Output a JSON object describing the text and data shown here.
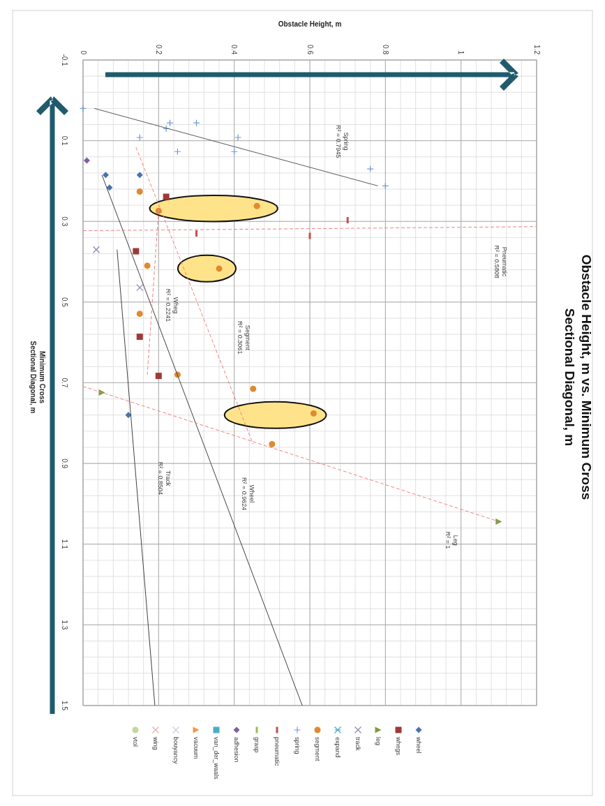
{
  "chart_data": {
    "type": "scatter",
    "title": "Obstacle Height, m vs. Minimum Cross\nSectional Diagonal, m",
    "xlabel": "Obstacle Height, m",
    "ylabel": "Minimum Cross\nSectional Diagonal, m",
    "xlim": [
      0,
      1.2
    ],
    "xticks": [
      0,
      0.2,
      0.4,
      0.6,
      0.8,
      1,
      1.2
    ],
    "ylim": [
      1.5,
      -0.1
    ],
    "yticks": [
      -0.1,
      0.1,
      0.3,
      0.5,
      0.7,
      0.9,
      1.1,
      1.3,
      1.5
    ],
    "grid": true,
    "legend": "bottom",
    "series": [
      {
        "name": "wheel",
        "color": "#4a72b0",
        "marker": "diamond",
        "values": [
          0.185,
          0.185,
          0.216,
          0.78
        ],
        "x": [
          0.06,
          0.15,
          0.07,
          0.12
        ]
      },
      {
        "name": "whegs",
        "color": "#9e3a38",
        "marker": "square",
        "values": [
          0.239,
          0.374,
          0.586,
          0.683
        ],
        "x": [
          0.22,
          0.14,
          0.15,
          0.2
        ]
      },
      {
        "name": "leg",
        "color": "#7f9a3f",
        "marker": "triangle",
        "values": [
          0.724,
          1.044
        ],
        "x": [
          0.05,
          1.1
        ]
      },
      {
        "name": "track",
        "color": "#8e82b8",
        "marker": "x",
        "values": [
          0.37,
          0.464
        ],
        "x": [
          0.035,
          0.15
        ]
      },
      {
        "name": "expand",
        "color": "#4aaac6",
        "marker": "asterisk"
      },
      {
        "name": "segment",
        "color": "#e08a2e",
        "marker": "circle",
        "values": [
          0.226,
          0.262,
          0.274,
          0.41,
          0.417,
          0.529,
          0.68,
          0.715,
          0.776,
          0.852
        ],
        "x": [
          0.15,
          0.46,
          0.2,
          0.17,
          0.36,
          0.15,
          0.25,
          0.45,
          0.61,
          0.5
        ]
      },
      {
        "name": "spring",
        "color": "#6f9ad8",
        "marker": "plus",
        "values": [
          0.02,
          0.056,
          0.056,
          0.07,
          0.092,
          0.092,
          0.127,
          0.127,
          0.17,
          0.212
        ],
        "x": [
          0.0,
          0.23,
          0.3,
          0.22,
          0.15,
          0.41,
          0.25,
          0.4,
          0.76,
          0.8
        ]
      },
      {
        "name": "pneumatic",
        "color": "#c0504d",
        "values": [
          0.297,
          0.33,
          0.336
        ],
        "x": [
          0.7,
          0.3,
          0.6
        ]
      },
      {
        "name": "grasp",
        "color": "#9bbb59"
      },
      {
        "name": "adhesion",
        "color": "#7d5fa0",
        "marker": "diamond",
        "values": [
          0.149
        ],
        "x": [
          0.01
        ]
      },
      {
        "name": "van_der_waals",
        "color": "#4bacc6",
        "marker": "square"
      },
      {
        "name": "vacuum",
        "color": "#f79646",
        "marker": "triangle"
      },
      {
        "name": "bouyancy",
        "color": "#c3c8e8",
        "marker": "x"
      },
      {
        "name": "wing",
        "color": "#f2a8a8",
        "marker": "x"
      },
      {
        "name": "vtol",
        "color": "#c4d79b",
        "marker": "circle"
      },
      {
        "type": "line",
        "color": "#595959",
        "line_style": "solid",
        "values": [
          0.02,
          0.212
        ],
        "x": [
          0.03,
          0.78
        ]
      },
      {
        "type": "line",
        "color": "#f28080",
        "line_style": "dashed",
        "values": [
          0.323,
          0.313
        ],
        "x": [
          0,
          1.2
        ]
      },
      {
        "type": "line",
        "color": "#404040",
        "line_style": "solid",
        "values": [
          0.185,
          1.5
        ],
        "x": [
          0.05,
          0.58
        ]
      },
      {
        "type": "line",
        "color": "#404040",
        "line_style": "solid",
        "values": [
          0.37,
          1.5
        ],
        "x": [
          0.09,
          0.19
        ]
      },
      {
        "type": "line",
        "color": "#f28080",
        "line_style": "dashed",
        "values": [
          0.272,
          0.68
        ],
        "x": [
          0.2,
          0.17
        ]
      },
      {
        "type": "line",
        "color": "#f28080",
        "line_style": "dashed",
        "values": [
          0.116,
          0.852
        ],
        "x": [
          0.14,
          0.45
        ]
      },
      {
        "type": "line",
        "color": "#f28080",
        "line_style": "dashed",
        "values": [
          0.709,
          1.044
        ],
        "x": [
          0,
          1.1
        ]
      }
    ],
    "annotations": [
      "Spring\nR² = 0.7945",
      "Pneumatic\nR² = 0.5808",
      "Wheg\nR² = 0.2241",
      "Segment\nR² = 0.3061",
      "Track\nR² = 0.8504",
      "Wheel\nR² = 0.9624",
      "Leg\nR² = 1"
    ]
  }
}
